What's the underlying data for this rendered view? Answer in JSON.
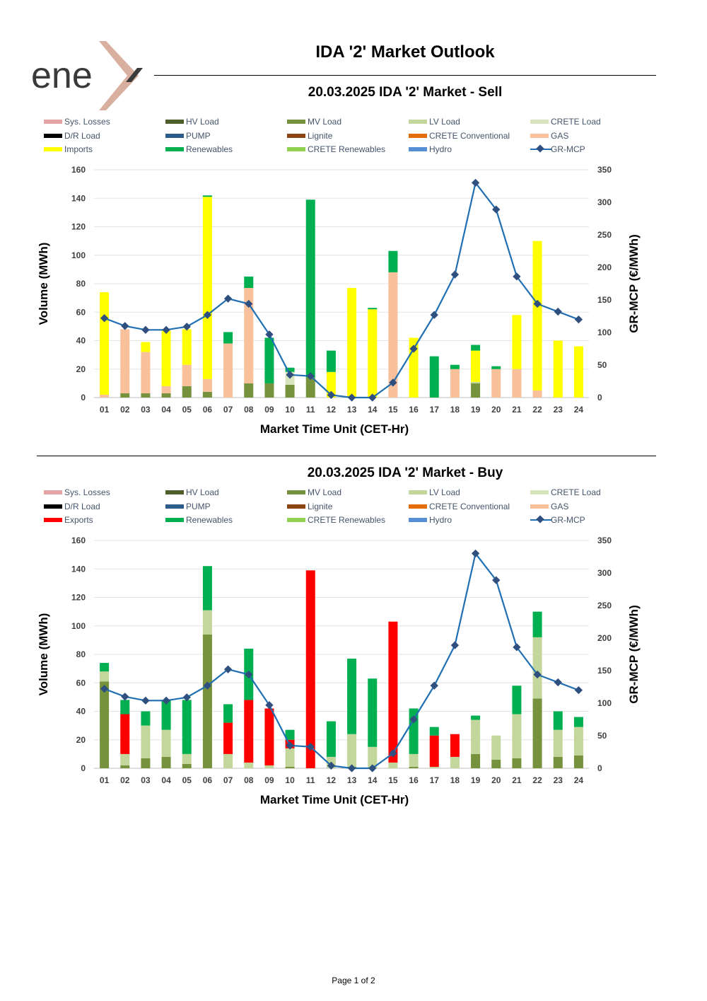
{
  "brand": {
    "logo_text": "ene",
    "accent": "#d9b0a0",
    "text_color": "#3a3a3a"
  },
  "title": "IDA '2' Market Outlook",
  "footer": "Page 1 of 2",
  "legend_colors": {
    "Sys. Losses": "#e6a3a3",
    "HV Load": "#4e5f2b",
    "MV Load": "#76923c",
    "LV Load": "#c3d69b",
    "CRETE Load": "#d7e4bd",
    "D/R Load": "#000000",
    "PUMP": "#2e5c8a",
    "Lignite": "#8b4513",
    "CRETE Conventional": "#e46c0a",
    "GAS": "#f8c09b",
    "Imports": "#ffff00",
    "Exports": "#ff0000",
    "Renewables": "#00b050",
    "CRETE Renewables": "#92d050",
    "Hydro": "#558ed5",
    "GR-MCP": "#1f6fb2"
  },
  "chart_data": [
    {
      "type": "bar",
      "stacked": true,
      "title": "20.03.2025  IDA '2' Market - Sell",
      "xlabel": "Market Time Unit (CET-Hr)",
      "ylabel": "Volume (MWh)",
      "y2label": "GR-MCP (€/MWh)",
      "ylim": [
        0,
        160
      ],
      "yticks": [
        "0",
        "20",
        "40",
        "60",
        "80",
        "100",
        "120",
        "140",
        "160"
      ],
      "y2lim": [
        0,
        350
      ],
      "y2ticks": [
        "0",
        "50",
        "100",
        "150",
        "200",
        "250",
        "300",
        "350"
      ],
      "categories": [
        "01",
        "02",
        "03",
        "04",
        "05",
        "06",
        "07",
        "08",
        "09",
        "10",
        "11",
        "12",
        "13",
        "14",
        "15",
        "16",
        "17",
        "18",
        "19",
        "20",
        "21",
        "22",
        "23",
        "24"
      ],
      "legend": [
        "Sys. Losses",
        "HV Load",
        "MV Load",
        "LV Load",
        "CRETE Load",
        "D/R Load",
        "PUMP",
        "Lignite",
        "CRETE Conventional",
        "GAS",
        "Imports",
        "Renewables",
        "CRETE Renewables",
        "Hydro",
        "GR-MCP"
      ],
      "series": [
        {
          "name": "MV Load",
          "values": [
            0,
            3,
            3,
            3,
            8,
            4,
            0,
            10,
            10,
            9,
            14,
            0,
            0,
            0,
            0,
            0,
            0,
            0,
            10,
            0,
            0,
            0,
            0,
            0
          ]
        },
        {
          "name": "LV Load",
          "values": [
            0,
            0,
            0,
            0,
            0,
            0,
            0,
            0,
            0,
            0,
            0,
            0,
            0,
            0,
            0,
            0,
            0,
            0,
            1,
            0,
            0,
            0,
            0,
            0
          ]
        },
        {
          "name": "CRETE Load",
          "values": [
            0,
            0,
            0,
            0,
            0,
            0,
            0,
            0,
            0,
            9,
            0,
            0,
            0,
            0,
            0,
            0,
            0,
            0,
            0,
            0,
            0,
            0,
            0,
            0
          ]
        },
        {
          "name": "GAS",
          "values": [
            2,
            45,
            29,
            5,
            15,
            9,
            38,
            67,
            0,
            0,
            0,
            0,
            0,
            0,
            88,
            0,
            0,
            20,
            0,
            20,
            20,
            5,
            0,
            0
          ]
        },
        {
          "name": "Imports",
          "values": [
            72,
            0,
            7,
            39,
            25,
            128,
            0,
            0,
            0,
            0,
            0,
            18,
            77,
            62,
            0,
            42,
            0,
            0,
            22,
            0,
            38,
            105,
            40,
            36
          ]
        },
        {
          "name": "Renewables",
          "values": [
            0,
            0,
            0,
            0,
            0,
            1,
            8,
            8,
            32,
            3,
            125,
            15,
            0,
            1,
            15,
            0,
            29,
            3,
            4,
            2,
            0,
            0,
            0,
            0
          ]
        }
      ],
      "line": {
        "name": "GR-MCP",
        "values": [
          122,
          110,
          104,
          104,
          109,
          127,
          152,
          144,
          97,
          35,
          33,
          4,
          0,
          0,
          23,
          75,
          127,
          189,
          330,
          289,
          186,
          144,
          132,
          120
        ]
      }
    },
    {
      "type": "bar",
      "stacked": true,
      "title": "20.03.2025  IDA '2' Market - Buy",
      "xlabel": "Market Time Unit (CET-Hr)",
      "ylabel": "Volume (MWh)",
      "y2label": "GR-MCP (€/MWh)",
      "ylim": [
        0,
        160
      ],
      "yticks": [
        "0",
        "20",
        "40",
        "60",
        "80",
        "100",
        "120",
        "140",
        "160"
      ],
      "y2lim": [
        0,
        350
      ],
      "y2ticks": [
        "0",
        "50",
        "100",
        "150",
        "200",
        "250",
        "300",
        "350"
      ],
      "categories": [
        "01",
        "02",
        "03",
        "04",
        "05",
        "06",
        "07",
        "08",
        "09",
        "10",
        "11",
        "12",
        "13",
        "14",
        "15",
        "16",
        "17",
        "18",
        "19",
        "20",
        "21",
        "22",
        "23",
        "24"
      ],
      "legend": [
        "Sys. Losses",
        "HV Load",
        "MV Load",
        "LV Load",
        "CRETE Load",
        "D/R Load",
        "PUMP",
        "Lignite",
        "CRETE Conventional",
        "GAS",
        "Exports",
        "Renewables",
        "CRETE Renewables",
        "Hydro",
        "GR-MCP"
      ],
      "series": [
        {
          "name": "MV Load",
          "values": [
            61,
            2,
            7,
            8,
            3,
            94,
            0,
            0,
            0,
            1,
            0,
            0,
            1,
            0,
            0,
            1,
            0,
            0,
            10,
            6,
            7,
            49,
            8,
            9
          ]
        },
        {
          "name": "LV Load",
          "values": [
            7,
            8,
            23,
            19,
            7,
            17,
            10,
            4,
            2,
            13,
            0,
            8,
            23,
            15,
            4,
            9,
            1,
            8,
            24,
            17,
            31,
            43,
            19,
            20
          ]
        },
        {
          "name": "Exports",
          "values": [
            0,
            28,
            0,
            0,
            0,
            0,
            22,
            44,
            40,
            6,
            139,
            0,
            0,
            0,
            99,
            0,
            22,
            16,
            0,
            0,
            0,
            0,
            0,
            0
          ]
        },
        {
          "name": "Renewables",
          "values": [
            6,
            10,
            10,
            21,
            38,
            31,
            13,
            36,
            0,
            7,
            0,
            25,
            53,
            48,
            0,
            32,
            6,
            0,
            3,
            0,
            20,
            18,
            13,
            7
          ]
        }
      ],
      "line": {
        "name": "GR-MCP",
        "values": [
          122,
          110,
          104,
          104,
          109,
          127,
          152,
          144,
          97,
          35,
          33,
          4,
          0,
          0,
          23,
          75,
          127,
          189,
          330,
          289,
          186,
          144,
          132,
          120
        ]
      }
    }
  ]
}
